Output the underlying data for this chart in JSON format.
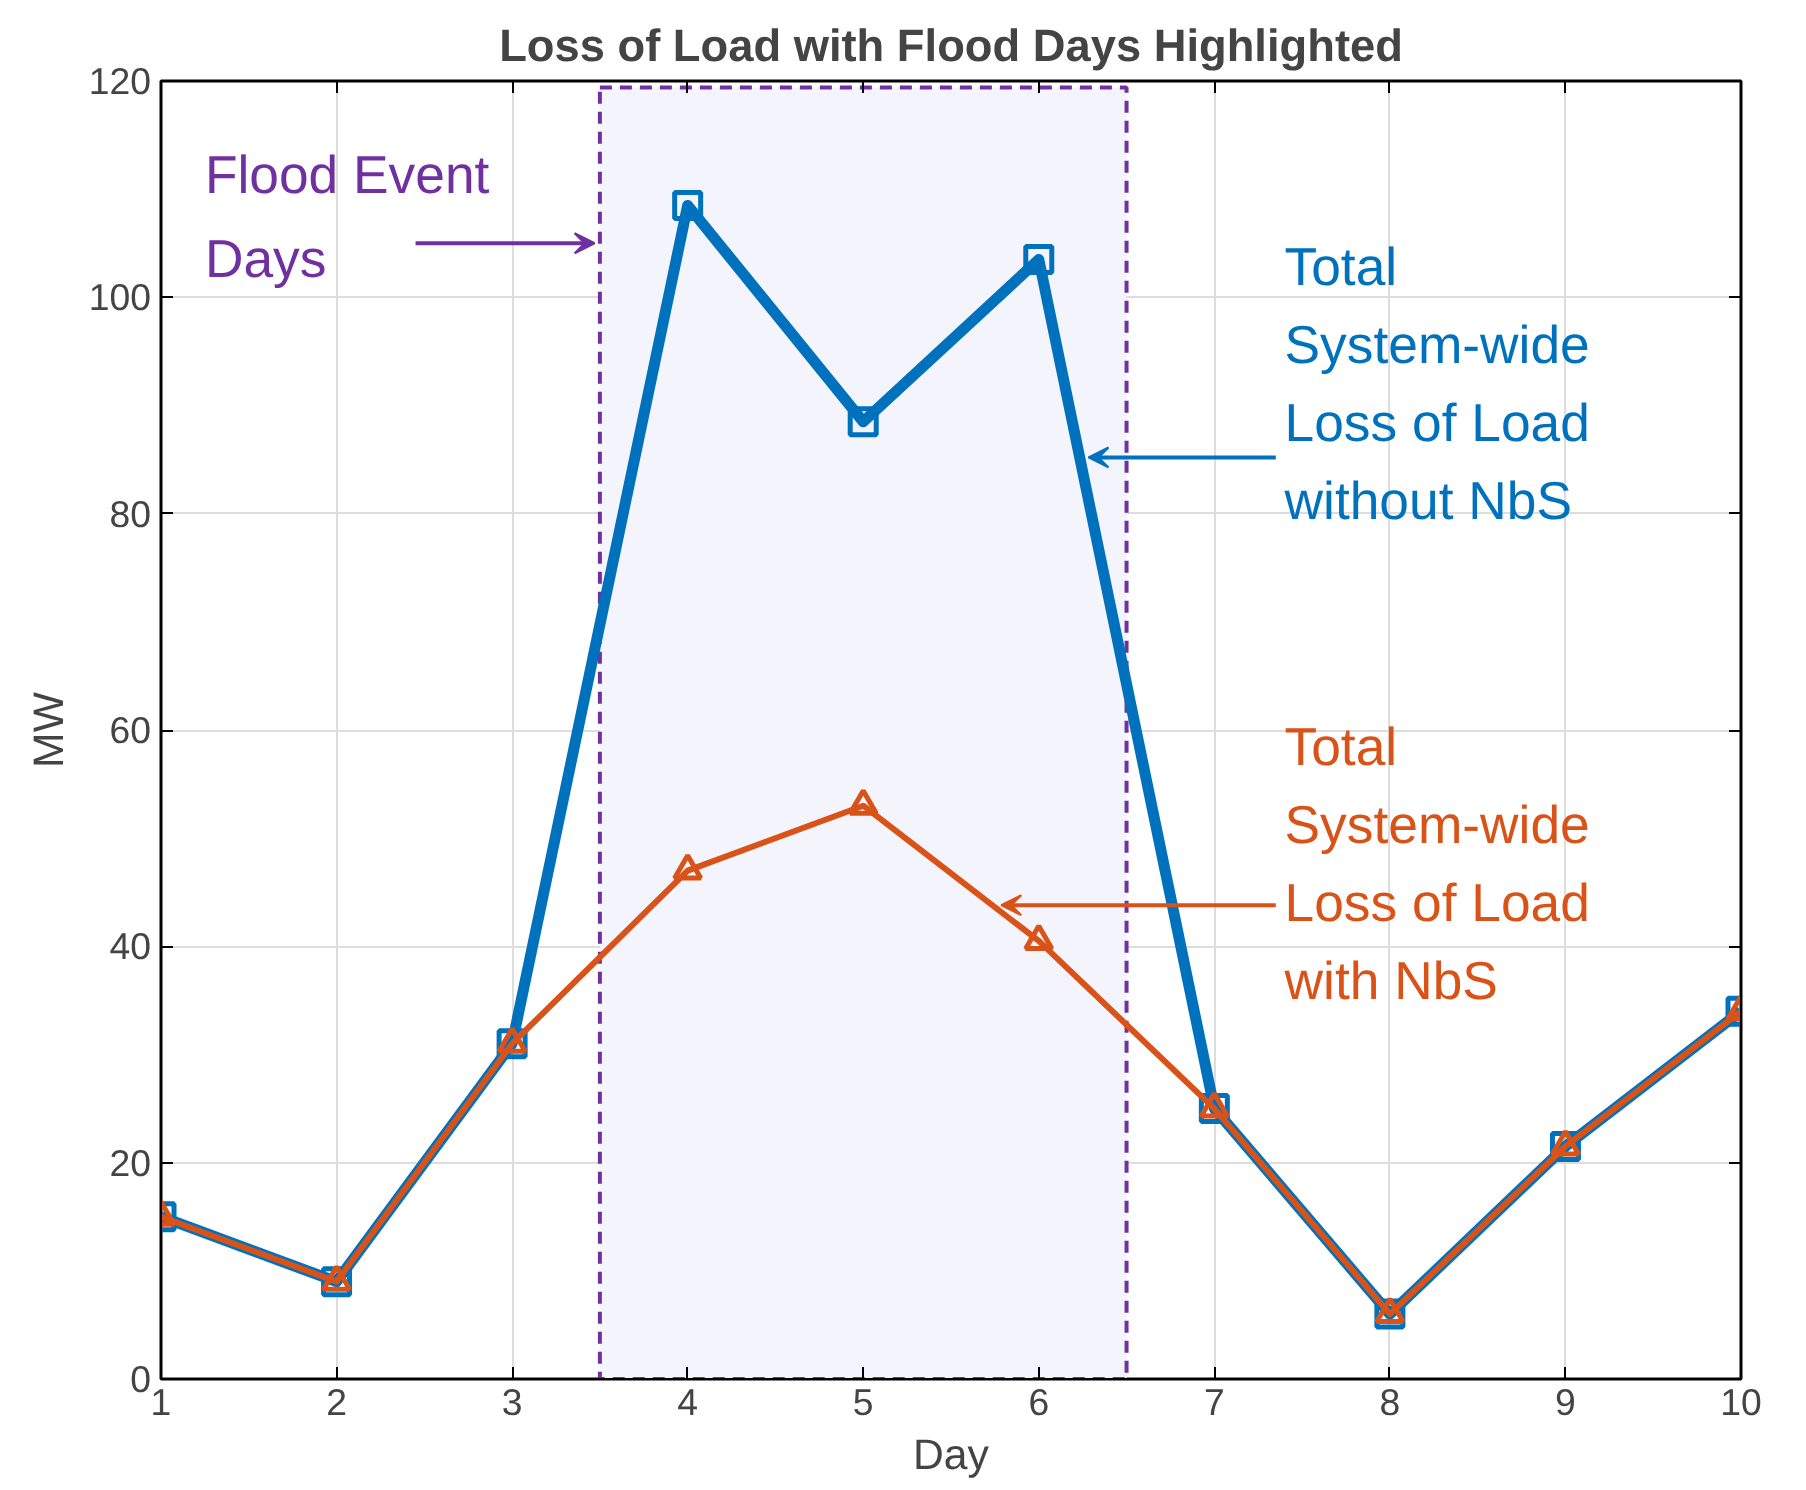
{
  "chart_data": {
    "type": "line",
    "title": "Loss of Load with Flood Days Highlighted",
    "xlabel": "Day",
    "ylabel": "MW",
    "x": [
      1,
      2,
      3,
      4,
      5,
      6,
      7,
      8,
      9,
      10
    ],
    "series": [
      {
        "name": "Total System-wide Loss of Load without NbS",
        "color": "#0072bd",
        "marker": "square",
        "values": [
          15,
          9,
          31,
          108.5,
          88.5,
          103.5,
          25,
          6,
          21.5,
          34
        ]
      },
      {
        "name": "Total System-wide Loss of Load with NbS",
        "color": "#d95319",
        "marker": "triangle",
        "values": [
          15,
          9,
          31,
          47,
          53,
          40.5,
          25,
          6,
          21.5,
          34
        ]
      }
    ],
    "bands": [
      {
        "axis": "x",
        "from": 3.5,
        "to": 6.5,
        "label": "Flood Event Days",
        "color": "#7030a0"
      }
    ],
    "xlim": [
      1,
      10
    ],
    "ylim": [
      0,
      120
    ],
    "xticks": [
      1,
      2,
      3,
      4,
      5,
      6,
      7,
      8,
      9,
      10
    ],
    "yticks": [
      0,
      20,
      40,
      60,
      80,
      100,
      120
    ],
    "grid": true,
    "line_style": "solid"
  }
}
